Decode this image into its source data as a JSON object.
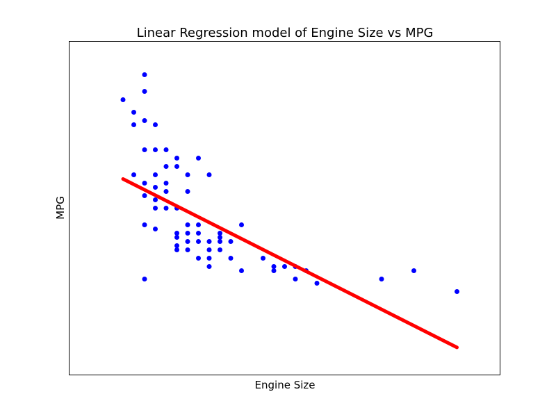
{
  "chart_data": {
    "type": "scatter",
    "title": "Linear Regression model of Engine Size vs MPG",
    "xlabel": "Engine Size",
    "ylabel": "MPG",
    "x_ticks_shown": false,
    "y_ticks_shown": false,
    "grid": false,
    "xlim": [
      0.5,
      8.5
    ],
    "ylim": [
      5,
      45
    ],
    "series": [
      {
        "type": "scatter",
        "color": "#0000ff",
        "points": [
          [
            1.5,
            38
          ],
          [
            1.7,
            36.5
          ],
          [
            1.7,
            35
          ],
          [
            1.7,
            29
          ],
          [
            1.9,
            39
          ],
          [
            1.9,
            41
          ],
          [
            1.9,
            35.5
          ],
          [
            1.9,
            32
          ],
          [
            1.9,
            28
          ],
          [
            1.9,
            26.5
          ],
          [
            1.9,
            23
          ],
          [
            1.9,
            16.5
          ],
          [
            2.1,
            35
          ],
          [
            2.1,
            32
          ],
          [
            2.1,
            29
          ],
          [
            2.1,
            27.5
          ],
          [
            2.1,
            26
          ],
          [
            2.1,
            25
          ],
          [
            2.1,
            22.5
          ],
          [
            2.3,
            32
          ],
          [
            2.3,
            30
          ],
          [
            2.3,
            28
          ],
          [
            2.3,
            27
          ],
          [
            2.3,
            25
          ],
          [
            2.5,
            31
          ],
          [
            2.5,
            30
          ],
          [
            2.5,
            25
          ],
          [
            2.5,
            22
          ],
          [
            2.5,
            21.5
          ],
          [
            2.5,
            20.5
          ],
          [
            2.5,
            20
          ],
          [
            2.7,
            29
          ],
          [
            2.7,
            27
          ],
          [
            2.7,
            23
          ],
          [
            2.7,
            22
          ],
          [
            2.7,
            21
          ],
          [
            2.7,
            20
          ],
          [
            2.9,
            31
          ],
          [
            2.9,
            23
          ],
          [
            2.9,
            22
          ],
          [
            2.9,
            21
          ],
          [
            2.9,
            19
          ],
          [
            3.1,
            29
          ],
          [
            3.1,
            21
          ],
          [
            3.1,
            20
          ],
          [
            3.1,
            19
          ],
          [
            3.1,
            18
          ],
          [
            3.3,
            22
          ],
          [
            3.3,
            21.5
          ],
          [
            3.3,
            21
          ],
          [
            3.3,
            20
          ],
          [
            3.5,
            21
          ],
          [
            3.5,
            19
          ],
          [
            3.7,
            23
          ],
          [
            3.7,
            17.5
          ],
          [
            4.1,
            19
          ],
          [
            4.3,
            18
          ],
          [
            4.3,
            17.5
          ],
          [
            4.5,
            18
          ],
          [
            4.7,
            18
          ],
          [
            4.7,
            16.5
          ],
          [
            4.9,
            17.5
          ],
          [
            5.1,
            16
          ],
          [
            6.3,
            16.5
          ],
          [
            6.9,
            17.5
          ],
          [
            7.7,
            15
          ]
        ]
      },
      {
        "type": "line",
        "color": "#ff0000",
        "x": [
          1.5,
          7.7
        ],
        "y": [
          28.5,
          8.3
        ]
      }
    ]
  }
}
